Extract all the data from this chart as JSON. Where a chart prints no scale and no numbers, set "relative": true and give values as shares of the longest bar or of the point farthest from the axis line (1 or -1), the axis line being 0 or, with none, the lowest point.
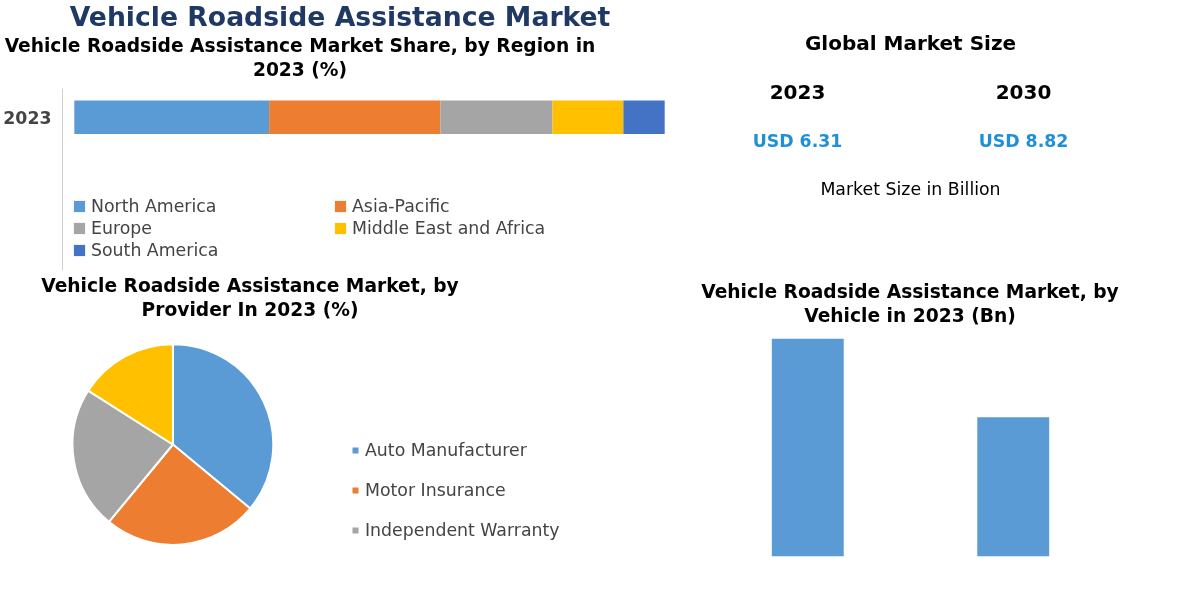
{
  "chart_data": [
    {
      "type": "bar",
      "orientation": "horizontal",
      "stacked": true,
      "relative": true,
      "title": "Vehicle Roadside Assistance Market Share, by Region in 2023 (%)",
      "annotations": [
        "Vehicle Roadside Assistance Market"
      ],
      "categories": [
        "2023"
      ],
      "tick_labels": "y",
      "legend": "bottom",
      "series": [
        {
          "name": "North America",
          "color": "#5b9bd5",
          "values": [
            0.33
          ]
        },
        {
          "name": "Asia-Pacific",
          "color": "#ed7d31",
          "values": [
            0.29
          ]
        },
        {
          "name": "Europe",
          "color": "#a5a5a5",
          "values": [
            0.19
          ]
        },
        {
          "name": "Middle East and Africa",
          "color": "#ffc000",
          "values": [
            0.12
          ]
        },
        {
          "name": "South America",
          "color": "#4472c4",
          "values": [
            0.07
          ]
        }
      ]
    },
    {
      "type": "pie",
      "title": "Vehicle Roadside Assistance Market, by Provider In 2023 (%)",
      "legend": "right",
      "categories": [
        "Auto Manufacturer",
        "Motor Insurance",
        "Independent Warranty",
        null
      ],
      "values": [
        36,
        25,
        23,
        16
      ],
      "colors": [
        "#5b9bd5",
        "#ed7d31",
        "#a5a5a5",
        "#ffc000"
      ]
    },
    {
      "type": "other",
      "title": "Global Market Size",
      "categories": [
        "2023",
        "2030"
      ],
      "values": [
        6.31,
        8.82
      ],
      "value_labels": [
        "USD 6.31",
        "USD 8.82"
      ],
      "color": "#1f8fd6",
      "annotations": [
        "Market Size in Billion"
      ]
    },
    {
      "type": "bar",
      "relative": true,
      "title": "Vehicle Roadside Assistance Market, by Vehicle in 2023 (Bn)",
      "categories": [
        null,
        null
      ],
      "values": [
        1,
        0.64
      ],
      "color": "#5b9bd5",
      "tick_labels": false
    }
  ]
}
